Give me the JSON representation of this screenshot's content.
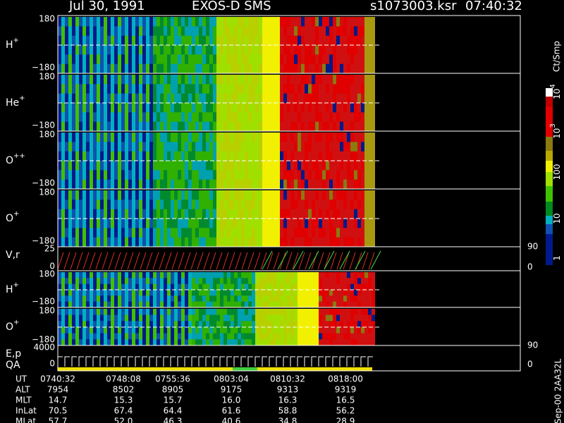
{
  "header": {
    "date": "Jul 30, 1991",
    "instrument": "EXOS-D SMS",
    "file": "s1073003.ksr",
    "time": "07:40:32"
  },
  "panels": [
    {
      "label": "H",
      "sup": "+",
      "top": "180",
      "bottom": "−180"
    },
    {
      "label": "He",
      "sup": "+",
      "top": "180",
      "bottom": "−180"
    },
    {
      "label": "O",
      "sup": "++",
      "top": "180",
      "bottom": "−180"
    },
    {
      "label": "O",
      "sup": "+",
      "top": "180",
      "bottom": "−180"
    },
    {
      "label": "H",
      "sup": "+",
      "top": "180",
      "bottom": "−180"
    },
    {
      "label": "O",
      "sup": "+",
      "top": "180",
      "bottom": "−180"
    }
  ],
  "vr_panel": {
    "label": "V,r",
    "top": "25",
    "bottom": "0",
    "right_top": "90",
    "right_bottom": "0"
  },
  "ep_panel": {
    "label": "E,p",
    "label2": "QA",
    "top": "4000",
    "bottom": "0",
    "right_top": "90",
    "right_bottom": "0"
  },
  "colorbar": {
    "unit": "Ct/Smp",
    "ticks": [
      {
        "base": "10",
        "exp": "4"
      },
      {
        "base": "10",
        "exp": "3"
      },
      {
        "base": "100"
      },
      {
        "base": "10"
      },
      {
        "base": "1"
      }
    ]
  },
  "footer": {
    "rows": [
      [
        "UT",
        "0740:32",
        "0748:08",
        "0755:36",
        "0803:04",
        "0810:32",
        "0818:00"
      ],
      [
        "ALT",
        "7954",
        "8502",
        "8905",
        "9175",
        "9313",
        "9319"
      ],
      [
        "MLT",
        "14.7",
        "15.3",
        "15.7",
        "16.0",
        "16.3",
        "16.5"
      ],
      [
        "InLat",
        "70.5",
        "67.4",
        "64.4",
        "61.6",
        "58.8",
        "56.2"
      ],
      [
        "MLat",
        "57.7",
        "52.0",
        "46.3",
        "40.6",
        "34.8",
        "28.9"
      ]
    ]
  },
  "side_label": "Sep-00  2AA32L"
}
